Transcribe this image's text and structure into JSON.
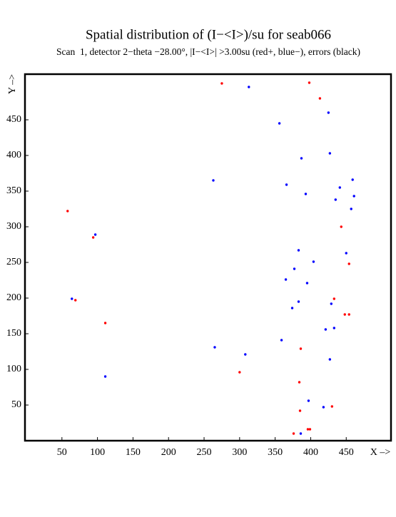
{
  "chart_data": {
    "type": "scatter",
    "title": "Spatial distribution of (I−<I>)/su for seab066",
    "subtitle": "Scan  1, detector 2−theta −28.00°, |I−<I>| >3.00su (red+, blue−), errors (black)",
    "x_label": "X –>",
    "y_label": "Y –>",
    "xlim": [
      -2,
      513
    ],
    "ylim": [
      0,
      514
    ],
    "xticks": [
      50,
      100,
      150,
      200,
      250,
      300,
      350,
      400,
      450
    ],
    "yticks": [
      50,
      100,
      150,
      200,
      250,
      300,
      350,
      400,
      450
    ],
    "series": [
      {
        "color": "#ff0000",
        "x": [
          275,
          398,
          413,
          58,
          94,
          69,
          111,
          443,
          454,
          433,
          448,
          454,
          386,
          300,
          384,
          430,
          385,
          396,
          399,
          376
        ],
        "values": [
          501,
          502,
          480,
          322,
          285,
          197,
          165,
          300,
          248,
          199,
          177,
          177,
          129,
          96,
          82,
          48,
          42,
          16,
          16,
          10
        ]
      },
      {
        "color": "#0000ff",
        "x": [
          313,
          425,
          356,
          427,
          387,
          263,
          459,
          366,
          441,
          393,
          461,
          435,
          457,
          97,
          383,
          450,
          404,
          377,
          365,
          395,
          64,
          383,
          429,
          374,
          433,
          421,
          359,
          265,
          308,
          427,
          111,
          397,
          418,
          386
        ],
        "values": [
          496,
          460,
          445,
          403,
          396,
          365,
          366,
          359,
          355,
          346,
          343,
          338,
          325,
          289,
          267,
          263,
          251,
          241,
          226,
          221,
          199,
          195,
          192,
          186,
          158,
          156,
          141,
          131,
          121,
          114,
          90,
          56,
          47,
          10
        ]
      }
    ]
  }
}
